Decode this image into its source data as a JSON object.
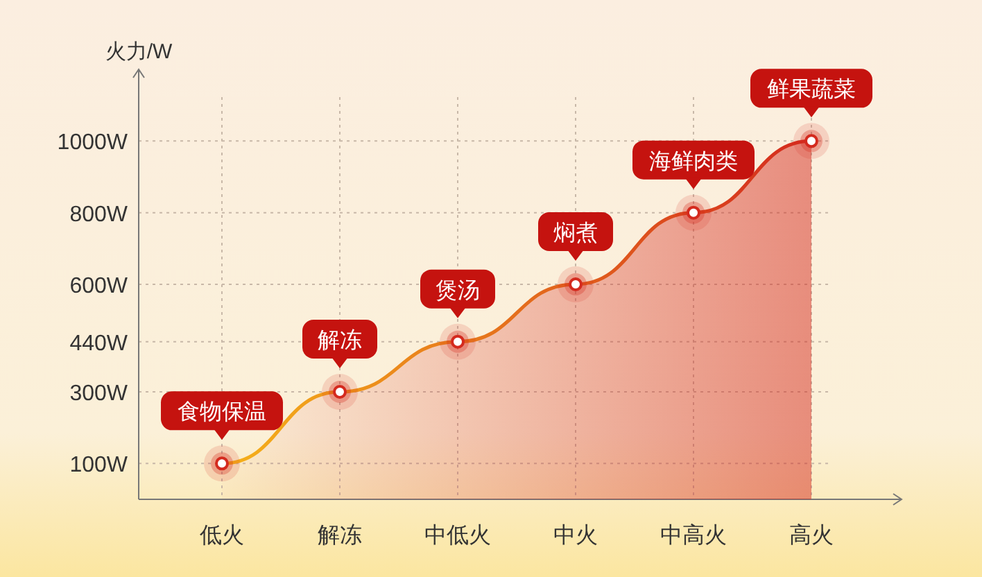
{
  "chart_data": {
    "type": "area",
    "ylabel": "火力/W",
    "categories": [
      "低火",
      "解冻",
      "中低火",
      "中火",
      "中高火",
      "高火"
    ],
    "series": [
      {
        "color": "#d42a1e",
        "values": [
          100,
          300,
          440,
          600,
          800,
          1000
        ]
      }
    ],
    "ylim": [
      0,
      1200
    ],
    "yticks": [
      {
        "value": 100,
        "label": "100W"
      },
      {
        "value": 300,
        "label": "300W"
      },
      {
        "value": 440,
        "label": "440W"
      },
      {
        "value": 600,
        "label": "600W"
      },
      {
        "value": 800,
        "label": "800W"
      },
      {
        "value": 1000,
        "label": "1000W"
      }
    ],
    "grid": true,
    "marker": "circle",
    "annotations": [
      {
        "text": "食物保温",
        "x": "低火",
        "y": 100
      },
      {
        "text": "解冻",
        "x": "解冻",
        "y": 300
      },
      {
        "text": "煲汤",
        "x": "中低火",
        "y": 440
      },
      {
        "text": "焖煮",
        "x": "中火",
        "y": 600
      },
      {
        "text": "海鲜肉类",
        "x": "中高火",
        "y": 800
      },
      {
        "text": "鲜果蔬菜",
        "x": "高火",
        "y": 1000
      }
    ]
  }
}
